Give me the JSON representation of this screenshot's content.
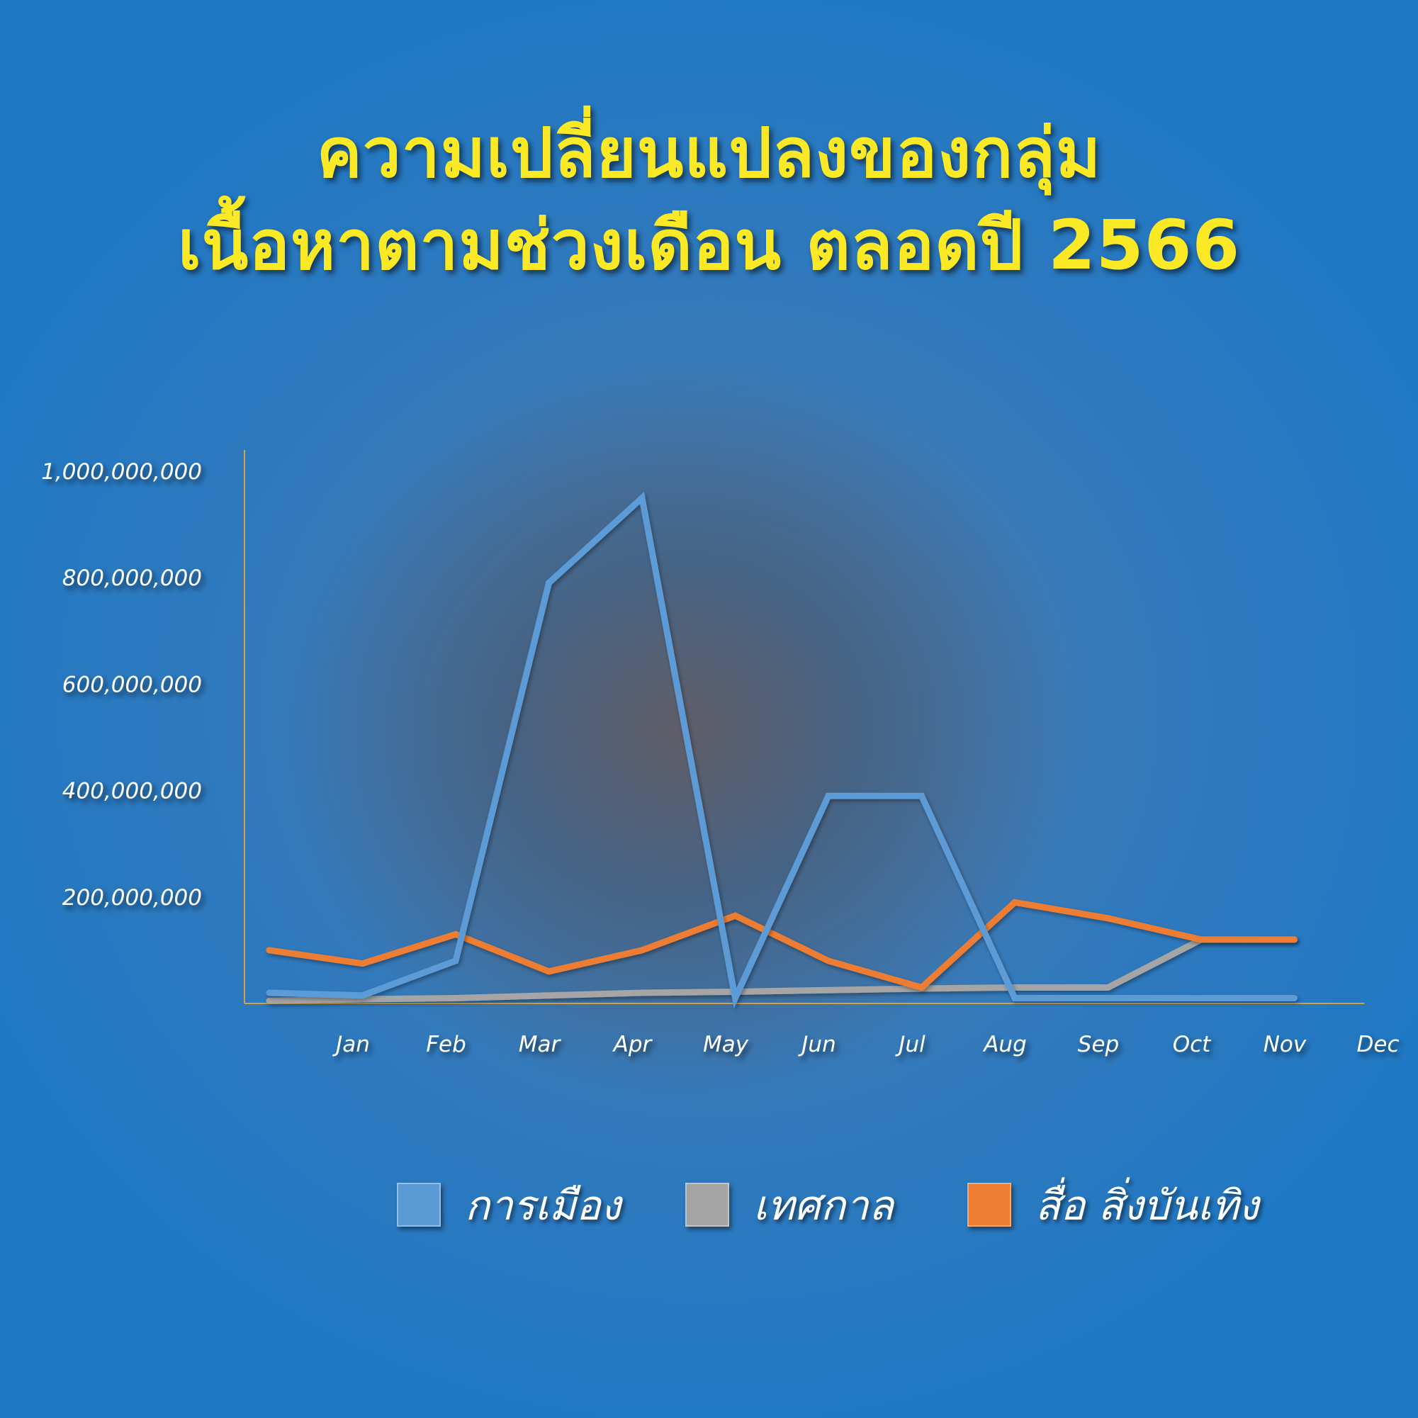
{
  "title": {
    "line1": "ความเปลี่ยนแปลงของกลุ่ม",
    "line2": "เนื้อหาตามช่วงเดือน ตลอดปี 2566"
  },
  "colors": {
    "background": "#1f78c4",
    "title": "#fbe926",
    "axis": "#d9a13a",
    "politics": "#5b9bd5",
    "festival": "#a5a5a5",
    "media": "#ed7d31"
  },
  "chart_data": {
    "type": "line",
    "title": "ความเปลี่ยนแปลงของกลุ่ม เนื้อหาตามช่วงเดือน ตลอดปี 2566",
    "xlabel": "",
    "ylabel": "",
    "categories": [
      "Jan",
      "Feb",
      "Mar",
      "Apr",
      "May",
      "Jun",
      "Jul",
      "Aug",
      "Sep",
      "Oct",
      "Nov",
      "Dec"
    ],
    "ylim": [
      0,
      1000000000
    ],
    "yticks": [
      200000000,
      400000000,
      600000000,
      800000000,
      1000000000
    ],
    "ytick_labels": [
      "200,000,000",
      "400,000,000",
      "600,000,000",
      "800,000,000",
      "1,000,000,000"
    ],
    "grid": false,
    "legend_position": "bottom",
    "series": [
      {
        "name": "การเมือง",
        "color": "#5b9bd5",
        "values": [
          20000000,
          15000000,
          80000000,
          790000000,
          950000000,
          10000000,
          390000000,
          390000000,
          10000000,
          10000000,
          10000000,
          10000000
        ]
      },
      {
        "name": "เทศกาล",
        "color": "#a5a5a5",
        "values": [
          5000000,
          8000000,
          10000000,
          15000000,
          20000000,
          22000000,
          25000000,
          28000000,
          30000000,
          30000000,
          120000000,
          120000000
        ]
      },
      {
        "name": "สื่อ สิ่งบันเทิง",
        "color": "#ed7d31",
        "values": [
          100000000,
          75000000,
          130000000,
          60000000,
          100000000,
          165000000,
          80000000,
          30000000,
          190000000,
          160000000,
          120000000,
          120000000
        ]
      }
    ]
  }
}
